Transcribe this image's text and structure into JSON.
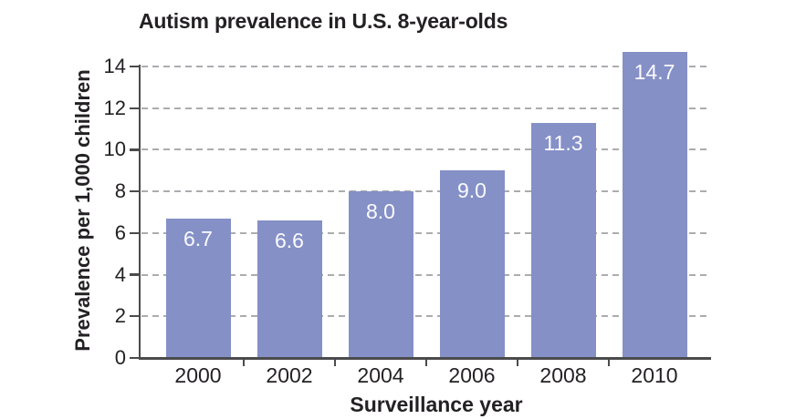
{
  "chart_data": {
    "type": "bar",
    "title": "Autism prevalence in U.S. 8-year-olds",
    "xlabel": "Surveillance year",
    "ylabel": "Prevalence per 1,000 children",
    "categories": [
      "2000",
      "2002",
      "2004",
      "2006",
      "2008",
      "2010"
    ],
    "values": [
      6.7,
      6.6,
      8.0,
      9.0,
      11.3,
      14.7
    ],
    "value_labels": [
      "6.7",
      "6.6",
      "8.0",
      "9.0",
      "11.3",
      "14.7"
    ],
    "y_ticks": [
      0,
      2,
      4,
      6,
      8,
      10,
      12,
      14
    ],
    "ylim": [
      0,
      14.85
    ],
    "grid": "horizontal-dashed",
    "legend": "none",
    "colors": {
      "bar": "#8590c7",
      "value_label": "#fbfbfd",
      "text": "#242124",
      "axis": "#4b4b4d",
      "gridline": "#aaacaf",
      "background": "#ffffff"
    }
  }
}
